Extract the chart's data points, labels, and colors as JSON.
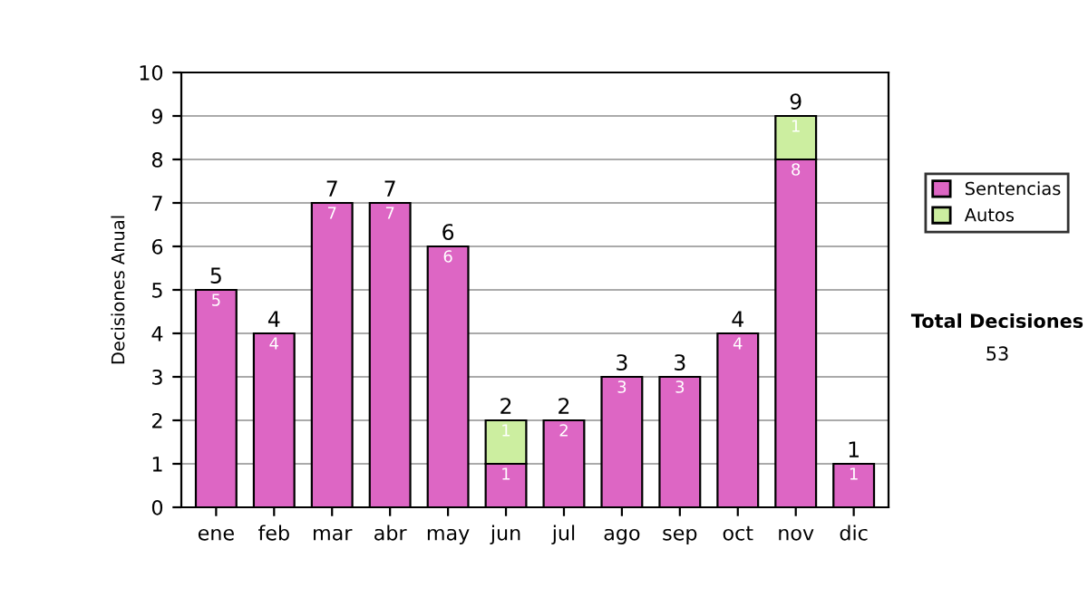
{
  "chart_data": {
    "type": "bar",
    "stacked": true,
    "ylabel": "Decisiones Anual",
    "categories": [
      "ene",
      "feb",
      "mar",
      "abr",
      "may",
      "jun",
      "jul",
      "ago",
      "sep",
      "oct",
      "nov",
      "dic"
    ],
    "series": [
      {
        "name": "Sentencias",
        "color": "#dd66c4",
        "values": [
          5,
          4,
          7,
          7,
          6,
          1,
          2,
          3,
          3,
          4,
          8,
          1
        ]
      },
      {
        "name": "Autos",
        "color": "#cceea0",
        "values": [
          null,
          null,
          null,
          null,
          null,
          1,
          null,
          null,
          null,
          null,
          1,
          null
        ]
      }
    ],
    "data_labels": true,
    "totals": [
      "5",
      "4",
      "7",
      "7",
      "6",
      "2",
      "2",
      "3",
      "3",
      "4",
      "9",
      "1"
    ],
    "ylim": [
      0,
      10
    ],
    "yticks": [
      0,
      1,
      2,
      3,
      4,
      5,
      6,
      7,
      8,
      9,
      10
    ],
    "grid": "y",
    "legend": "right",
    "annotations": [
      "Total Decisiones",
      "53"
    ]
  }
}
